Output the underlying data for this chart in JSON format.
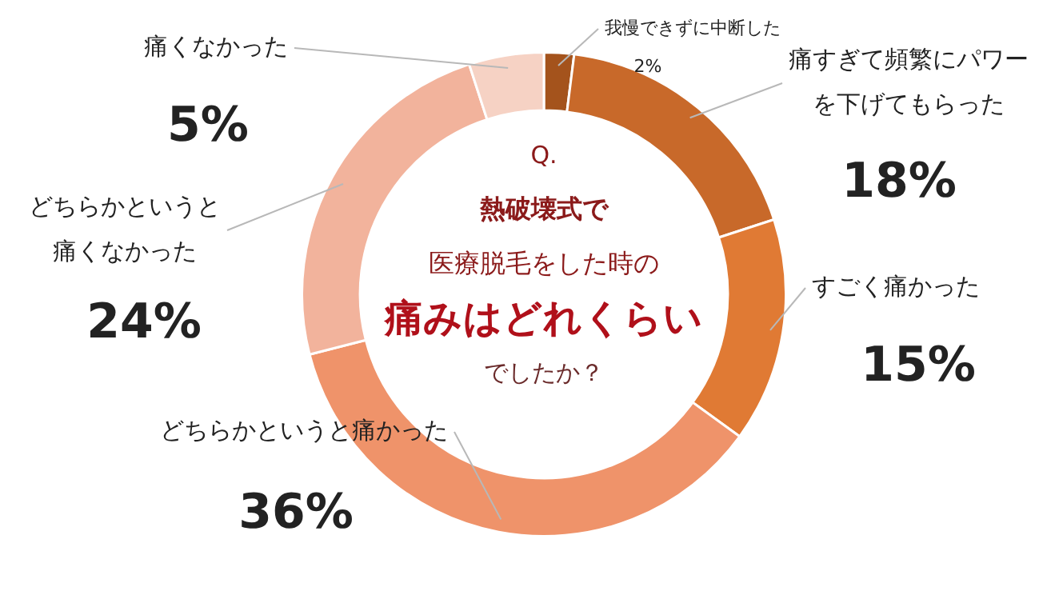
{
  "chart_data": {
    "type": "donut",
    "title": "Q.熱破壊式で医療脱毛をした時の痛みはどれくらいでしたか？",
    "categories": [
      "我慢できずに中断した",
      "痛すぎて頻繁にパワーを下げてもらった",
      "すごく痛かった",
      "どちらかというと痛かった",
      "どちらかというと痛くなかった",
      "痛くなかった"
    ],
    "values": [
      2,
      18,
      15,
      36,
      24,
      5
    ],
    "colors": [
      "#a4531c",
      "#c8692a",
      "#e07a34",
      "#ef936a",
      "#f2b39c",
      "#f6d2c4"
    ],
    "value_labels": [
      "2%",
      "18%",
      "15%",
      "36%",
      "24%",
      "5%"
    ],
    "legend": false
  }
}
